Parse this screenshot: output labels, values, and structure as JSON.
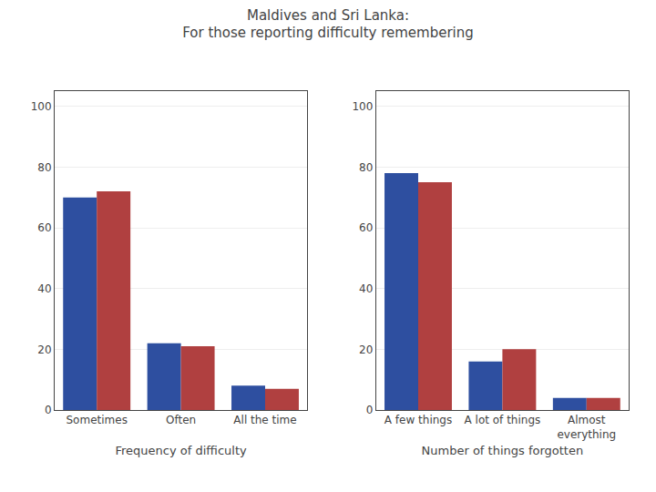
{
  "chart_data": [
    {
      "type": "bar",
      "title": "Maldives and Sri Lanka:",
      "subtitle": "For those reporting difficulty remembering",
      "categories": [
        "Sometimes",
        "Often",
        "All the time"
      ],
      "series": [
        {
          "color": "#2E4FA0",
          "values": [
            70,
            22,
            8
          ]
        },
        {
          "color": "#B04040",
          "values": [
            72,
            21,
            7
          ]
        }
      ],
      "xlabel": "Frequency of difficulty",
      "ylim": [
        0,
        105
      ],
      "yticks": [
        0,
        20,
        40,
        60,
        80,
        100
      ],
      "grid": true
    },
    {
      "type": "bar",
      "categories": [
        "A few things",
        "A lot of things",
        "Almost\neverything"
      ],
      "series": [
        {
          "color": "#2E4FA0",
          "values": [
            78,
            16,
            4
          ]
        },
        {
          "color": "#B04040",
          "values": [
            75,
            20,
            4
          ]
        }
      ],
      "xlabel": "Number of things forgotten",
      "ylim": [
        0,
        105
      ],
      "yticks": [
        0,
        20,
        40,
        60,
        80,
        100
      ],
      "grid": true
    }
  ]
}
